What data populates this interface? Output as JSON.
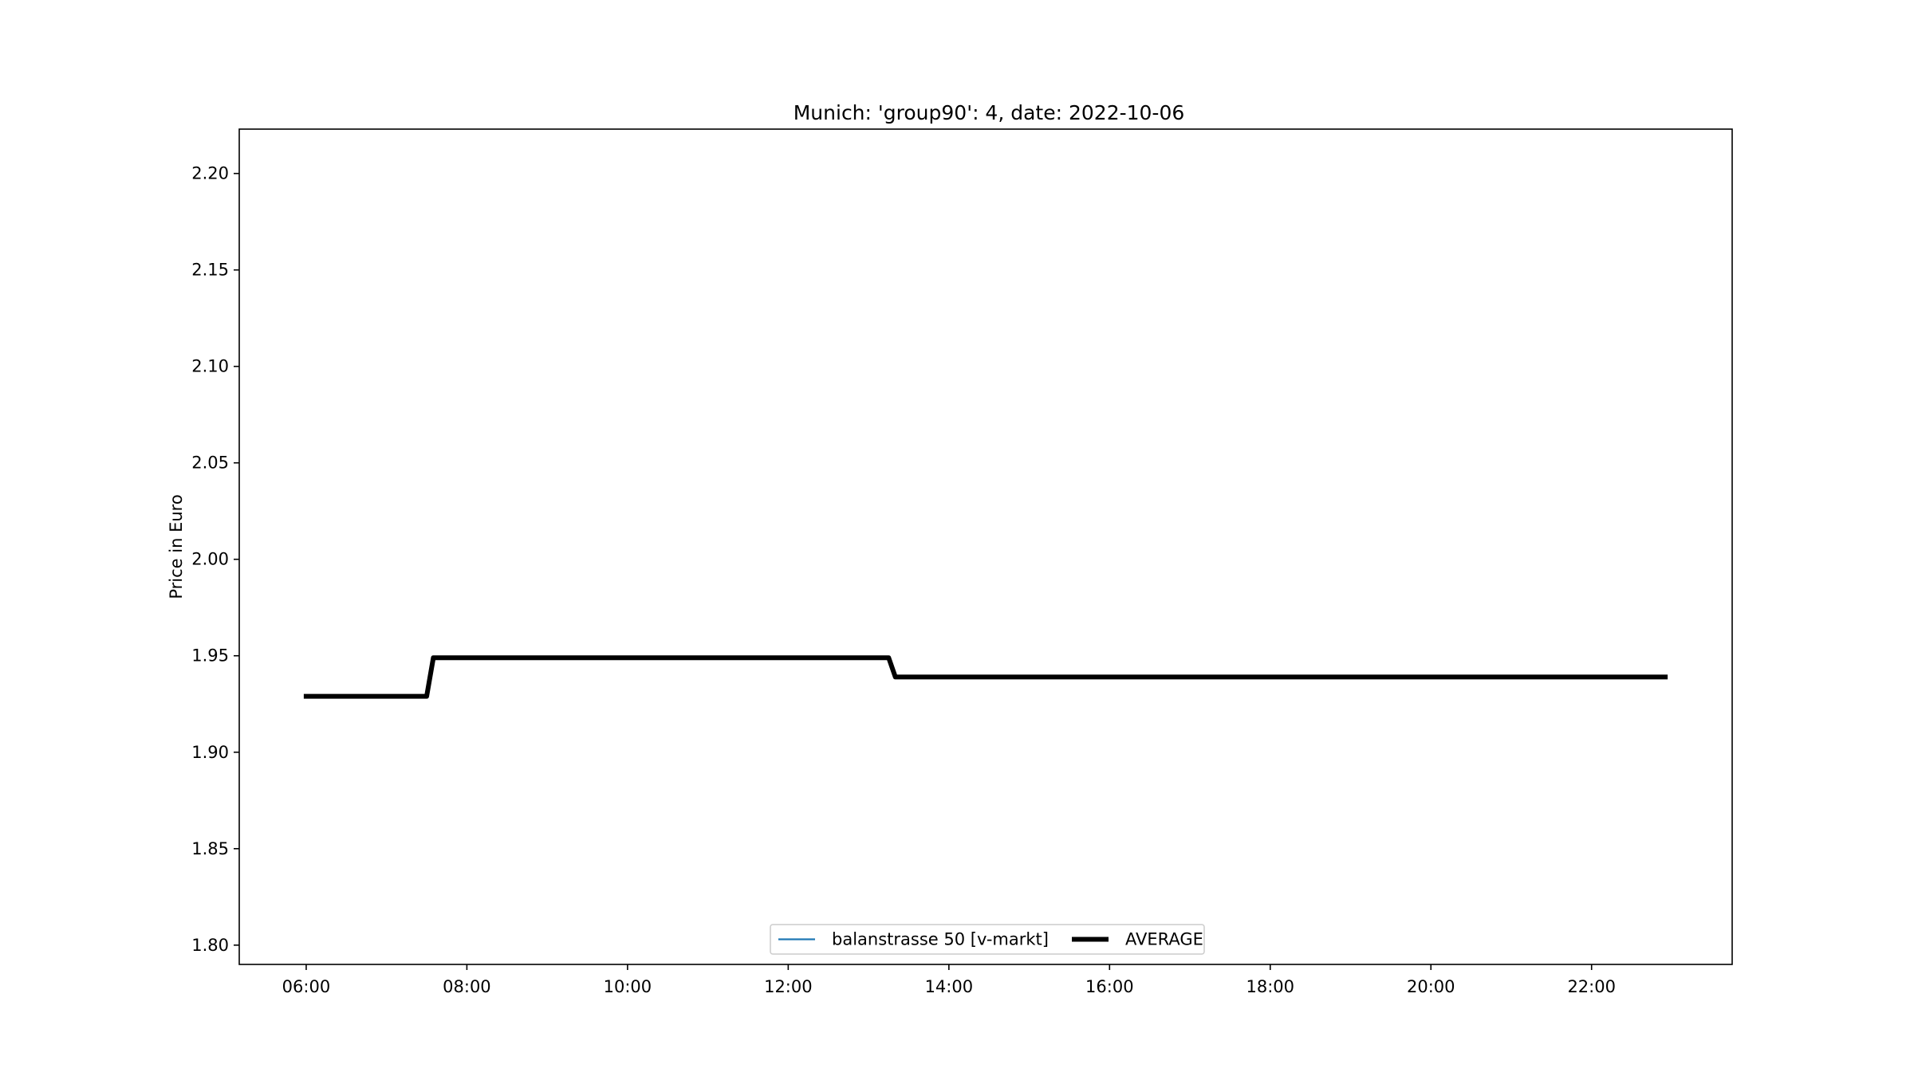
{
  "chart_data": {
    "type": "line",
    "title": "Munich: 'group90': 4, date: 2022-10-06",
    "xlabel": "",
    "ylabel": "Price in Euro",
    "xlim": [
      "05:10",
      "23:45"
    ],
    "ylim": [
      1.79,
      2.223
    ],
    "x_ticks": [
      "06:00",
      "08:00",
      "10:00",
      "12:00",
      "14:00",
      "16:00",
      "18:00",
      "20:00",
      "22:00"
    ],
    "y_ticks": [
      "1.80",
      "1.85",
      "1.90",
      "1.95",
      "2.00",
      "2.05",
      "2.10",
      "2.15",
      "2.20"
    ],
    "grid": false,
    "legend": {
      "placement": "lower center",
      "entries": [
        "balanstrasse 50 [v-markt]",
        "AVERAGE"
      ]
    },
    "series": [
      {
        "name": "balanstrasse 50 [v-markt]",
        "color": "#1f77b4",
        "x": [
          "06:00",
          "07:30",
          "07:35",
          "13:15",
          "13:20",
          "22:55"
        ],
        "values": [
          1.929,
          1.929,
          1.949,
          1.949,
          1.939,
          1.939
        ]
      },
      {
        "name": "AVERAGE",
        "color": "#000000",
        "x": [
          "06:00",
          "07:30",
          "07:35",
          "13:15",
          "13:20",
          "22:55"
        ],
        "values": [
          1.929,
          1.929,
          1.949,
          1.949,
          1.939,
          1.939
        ]
      }
    ]
  }
}
